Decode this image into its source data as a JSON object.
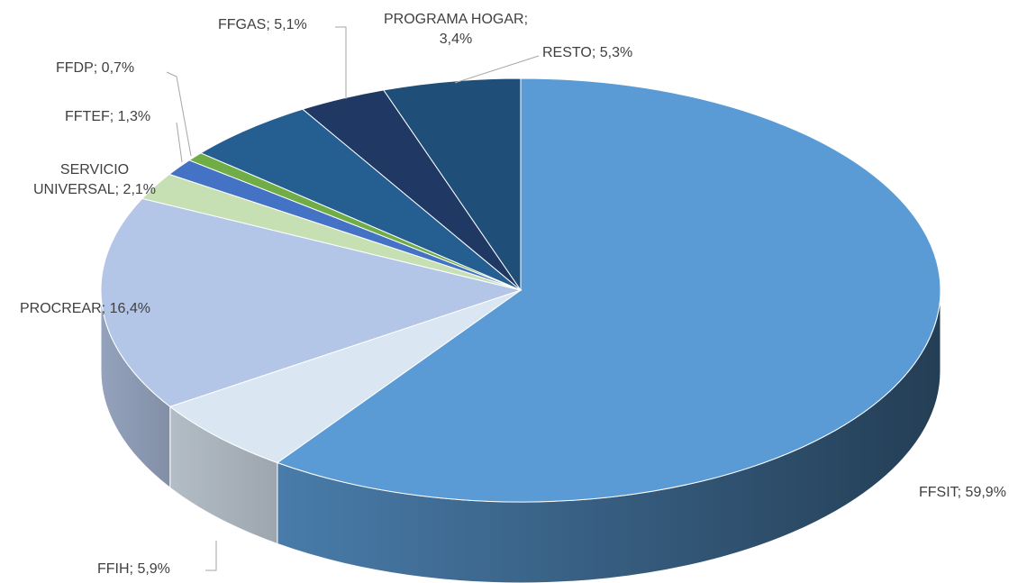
{
  "chart_data": {
    "type": "pie3d",
    "values": [
      59.9,
      5.9,
      16.4,
      2.1,
      1.3,
      0.7,
      5.1,
      3.4,
      5.3
    ],
    "value_labels": [
      "FFSIT; 59,9%",
      "FFIH; 5,9%",
      "PROCREAR; 16,4%",
      "SERVICIO\nUNIVERSAL; 2,1%",
      "FFTEF; 1,3%",
      "FFDP; 0,7%",
      "FFGAS; 5,1%",
      "PROGRAMA HOGAR;\n3,4%",
      "RESTO; 5,3%"
    ],
    "colors": [
      "#5b9bd5",
      "#dae6f2",
      "#b4c6e7",
      "#c6e0b4",
      "#4472c4",
      "#70ad47",
      "#255e91",
      "#1f3864",
      "#1f4e79"
    ]
  }
}
